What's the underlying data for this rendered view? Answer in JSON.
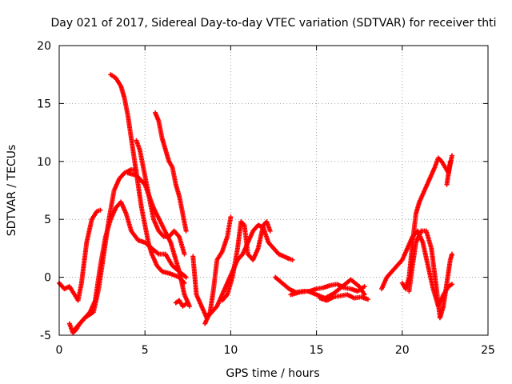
{
  "chart_data": {
    "type": "scatter",
    "title": "Day 021 of 2017, Sidereal Day-to-day VTEC variation (SDTVAR) for receiver thti",
    "xlabel": "GPS time / hours",
    "ylabel": "SDTVAR / TECUs",
    "xlim": [
      0,
      25
    ],
    "ylim": [
      -5,
      20
    ],
    "xticks": [
      0,
      5,
      10,
      15,
      20,
      25
    ],
    "yticks": [
      -5,
      0,
      5,
      10,
      15,
      20
    ],
    "grid": true,
    "marker": "+",
    "color": "#ff0000",
    "series": [
      {
        "x": [
          0.0,
          0.3,
          0.6,
          0.9,
          1.1,
          1.3,
          1.6,
          1.9,
          2.2,
          2.4
        ],
        "y": [
          -0.5,
          -1.0,
          -0.8,
          -1.5,
          -2.0,
          -0.5,
          3.0,
          5.0,
          5.7,
          5.8
        ]
      },
      {
        "x": [
          0.6,
          0.8,
          1.0,
          1.2,
          1.5,
          1.8,
          2.0,
          2.3,
          2.6,
          2.9,
          3.2,
          3.5,
          3.8,
          4.2,
          4.5
        ],
        "y": [
          -4.0,
          -4.8,
          -4.5,
          -4.0,
          -3.5,
          -3.2,
          -3.0,
          -1.0,
          2.0,
          5.0,
          7.5,
          8.5,
          9.0,
          9.3,
          9.2
        ]
      },
      {
        "x": [
          0.9,
          1.2,
          1.5,
          1.8,
          2.1,
          2.4,
          2.7,
          3.0,
          3.3,
          3.6,
          3.9,
          4.2,
          4.6,
          5.0,
          5.4,
          5.8,
          6.2,
          6.6,
          7.0,
          7.4
        ],
        "y": [
          -4.5,
          -4.0,
          -3.5,
          -3.0,
          -2.0,
          1.0,
          3.5,
          5.0,
          6.0,
          6.5,
          5.5,
          4.0,
          3.2,
          3.0,
          2.5,
          2.0,
          2.0,
          1.0,
          0.5,
          0.0
        ]
      },
      {
        "x": [
          3.0,
          3.3,
          3.6,
          3.8,
          4.0,
          4.2,
          4.4,
          4.6,
          4.8,
          5.0,
          5.2,
          5.4,
          5.7,
          6.0,
          6.5,
          7.0,
          7.3
        ],
        "y": [
          17.5,
          17.2,
          16.5,
          15.5,
          14.0,
          12.0,
          10.0,
          8.0,
          6.0,
          4.5,
          3.0,
          2.0,
          1.0,
          0.5,
          0.3,
          0.0,
          -0.5
        ]
      },
      {
        "x": [
          4.5,
          4.7,
          4.9,
          5.1,
          5.3,
          5.5,
          5.8,
          6.1,
          6.4,
          6.7,
          7.0,
          7.3
        ],
        "y": [
          11.8,
          11.0,
          9.5,
          8.0,
          6.5,
          5.0,
          4.0,
          3.5,
          3.5,
          4.0,
          3.5,
          2.0
        ]
      },
      {
        "x": [
          4.0,
          4.5,
          5.0,
          5.5,
          6.0,
          6.5,
          7.0,
          7.3,
          7.6
        ],
        "y": [
          9.0,
          8.8,
          8.0,
          6.0,
          4.5,
          3.0,
          0.5,
          -1.5,
          -2.5
        ]
      },
      {
        "x": [
          5.6,
          5.8,
          6.0,
          6.2,
          6.4,
          6.6,
          6.8,
          7.0,
          7.2,
          7.4
        ],
        "y": [
          14.2,
          13.5,
          12.0,
          11.0,
          10.0,
          9.5,
          8.0,
          7.0,
          5.5,
          4.0
        ]
      },
      {
        "x": [
          6.8,
          7.0,
          7.2,
          7.5
        ],
        "y": [
          -2.2,
          -2.0,
          -2.5,
          -2.2
        ]
      },
      {
        "x": [
          7.8,
          8.0,
          8.3,
          8.6,
          8.9,
          9.2,
          9.5,
          9.8,
          10.1,
          10.4,
          10.7,
          11.0,
          11.3,
          11.6,
          11.9,
          12.2,
          12.5,
          12.8,
          13.1,
          13.4,
          13.6
        ],
        "y": [
          1.8,
          -1.5,
          -2.5,
          -3.5,
          -3.0,
          -2.5,
          -1.5,
          -0.5,
          0.5,
          1.5,
          2.0,
          3.0,
          4.0,
          4.5,
          4.3,
          3.0,
          2.5,
          2.0,
          1.8,
          1.6,
          1.5
        ]
      },
      {
        "x": [
          8.5,
          8.8,
          9.0,
          9.2,
          9.5,
          9.8,
          10.0
        ],
        "y": [
          -4.0,
          -3.0,
          -1.0,
          1.5,
          2.2,
          3.5,
          5.2
        ]
      },
      {
        "x": [
          9.5,
          9.8,
          10.1,
          10.4,
          10.6,
          10.8,
          11.0,
          11.3,
          11.6,
          11.9,
          12.1,
          12.3
        ],
        "y": [
          -2.0,
          -1.5,
          0.0,
          2.5,
          4.8,
          4.5,
          2.0,
          1.5,
          2.5,
          4.5,
          4.8,
          4.0
        ]
      },
      {
        "x": [
          12.6,
          13.0,
          13.4,
          13.8,
          14.2,
          14.6,
          15.0,
          15.4,
          15.8,
          16.2,
          16.6,
          17.0,
          17.4,
          17.8
        ],
        "y": [
          0.0,
          -0.5,
          -1.0,
          -1.3,
          -1.2,
          -1.2,
          -1.0,
          -0.9,
          -0.7,
          -0.6,
          -0.9,
          -1.0,
          -1.2,
          -0.8
        ]
      },
      {
        "x": [
          13.5,
          14.0,
          14.5,
          15.0,
          15.5,
          16.0,
          16.5,
          17.0,
          17.5,
          17.8
        ],
        "y": [
          -1.5,
          -1.3,
          -1.2,
          -1.5,
          -1.8,
          -1.4,
          -0.8,
          -0.2,
          -0.8,
          -1.5
        ]
      },
      {
        "x": [
          15.2,
          15.6,
          16.0,
          16.4,
          16.8,
          17.2,
          17.6,
          18.0
        ],
        "y": [
          -1.8,
          -2.0,
          -1.7,
          -1.6,
          -1.5,
          -1.8,
          -1.7,
          -1.9
        ]
      },
      {
        "x": [
          18.8,
          19.1,
          19.4,
          19.7,
          20.0,
          20.3,
          20.6,
          20.9,
          21.2,
          21.5,
          21.8,
          22.1,
          22.4,
          22.7,
          22.9
        ],
        "y": [
          -1.0,
          0.0,
          0.5,
          1.0,
          1.5,
          2.5,
          3.5,
          4.0,
          3.0,
          1.0,
          -1.0,
          -2.5,
          -1.5,
          -0.8,
          -0.6
        ]
      },
      {
        "x": [
          20.0,
          20.2,
          20.4,
          20.6,
          20.8,
          21.0,
          21.3,
          21.6,
          21.9,
          22.1,
          22.3,
          22.5,
          22.7,
          22.9
        ],
        "y": [
          -0.5,
          -1.0,
          0.0,
          3.0,
          5.5,
          6.5,
          7.5,
          8.5,
          9.5,
          10.3,
          10.0,
          9.5,
          9.0,
          10.5
        ]
      },
      {
        "x": [
          20.4,
          20.6,
          20.8,
          21.1,
          21.4,
          21.7,
          22.0,
          22.2,
          22.4,
          22.6,
          22.8,
          22.9
        ],
        "y": [
          -1.2,
          1.0,
          3.0,
          4.0,
          4.0,
          2.5,
          -1.0,
          -3.5,
          -2.5,
          -0.5,
          1.5,
          2.0
        ]
      },
      {
        "x": [
          22.6,
          22.8
        ],
        "y": [
          8.0,
          10.0
        ]
      }
    ]
  }
}
